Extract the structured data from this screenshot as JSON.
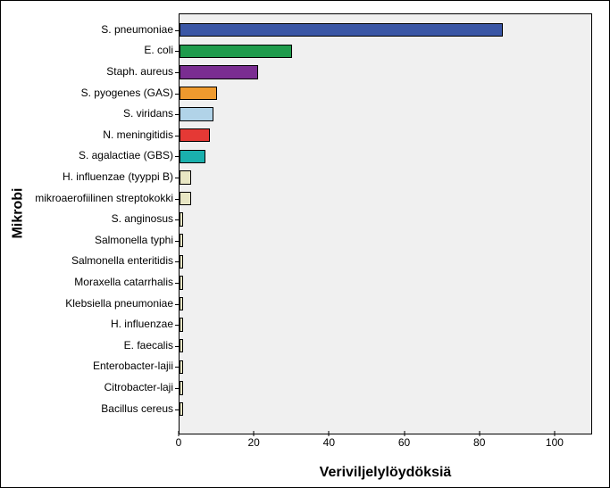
{
  "chart": {
    "type": "bar-horizontal",
    "ylabel": "Mikrobi",
    "xlabel": "Veriviljelylöydöksiä",
    "xlim": [
      0,
      110
    ],
    "xtick_step": 20,
    "xticks": [
      0,
      20,
      40,
      60,
      80,
      100
    ],
    "background_color": "#f0f0f0",
    "border_color": "#000000",
    "label_fontsize": 12,
    "axis_title_fontsize": 16,
    "bar_fill_ratio": 0.65,
    "categories": [
      "S. pneumoniae",
      "E. coli",
      "Staph. aureus",
      "S. pyogenes (GAS)",
      "S. viridans",
      "N. meningitidis",
      "S. agalactiae (GBS)",
      "H. influenzae (tyyppi B)",
      "mikroaerofiilinen streptokokki",
      "S. anginosus",
      "Salmonella typhi",
      "Salmonella enteritidis",
      "Moraxella catarrhalis",
      "Klebsiella pneumoniae",
      "H. influenzae",
      "E. faecalis",
      "Enterobacter-lajii",
      "Citrobacter-laji",
      "Bacillus cereus"
    ],
    "values": [
      86,
      30,
      21,
      10,
      9,
      8,
      7,
      3,
      3,
      1,
      1,
      1,
      1,
      1,
      1,
      1,
      1,
      1,
      1
    ],
    "bar_colors": [
      "#3a56a5",
      "#1f9b4c",
      "#7a2d91",
      "#ef9a2e",
      "#b1d3e8",
      "#e53935",
      "#1ab0ad",
      "#e8e6c4",
      "#e8e6c4",
      "#e8e6c4",
      "#e8e6c4",
      "#e8e6c4",
      "#e8e6c4",
      "#e8e6c4",
      "#e8e6c4",
      "#e8e6c4",
      "#e8e6c4",
      "#e8e6c4",
      "#e8e6c4"
    ]
  }
}
